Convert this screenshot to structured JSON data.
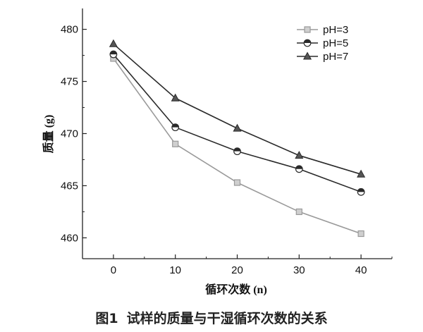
{
  "caption": {
    "number": "图1",
    "text": "试样的质量与干湿循环次数的关系"
  },
  "chart_data": {
    "type": "line",
    "x": [
      0,
      10,
      20,
      30,
      40
    ],
    "x_tick_labels": [
      "0",
      "10",
      "20",
      "30",
      "40"
    ],
    "y_tick_labels": [
      "460",
      "465",
      "470",
      "475",
      "480"
    ],
    "xlabel": "循环次数 (n)",
    "ylabel": "质量 (g)",
    "xlim": [
      -5,
      45
    ],
    "ylim": [
      458,
      482
    ],
    "grid": false,
    "legend_position": "top-right",
    "series": [
      {
        "name": "pH=3",
        "marker": "square",
        "color": "#9a9a9a",
        "values": [
          477.2,
          469.0,
          465.3,
          462.5,
          460.4
        ]
      },
      {
        "name": "pH=5",
        "marker": "half-circle",
        "color": "#2a2a2a",
        "values": [
          477.6,
          470.6,
          468.3,
          466.6,
          464.4
        ]
      },
      {
        "name": "pH=7",
        "marker": "triangle",
        "color": "#2a2a2a",
        "values": [
          478.6,
          473.4,
          470.5,
          467.9,
          466.1
        ]
      }
    ]
  }
}
